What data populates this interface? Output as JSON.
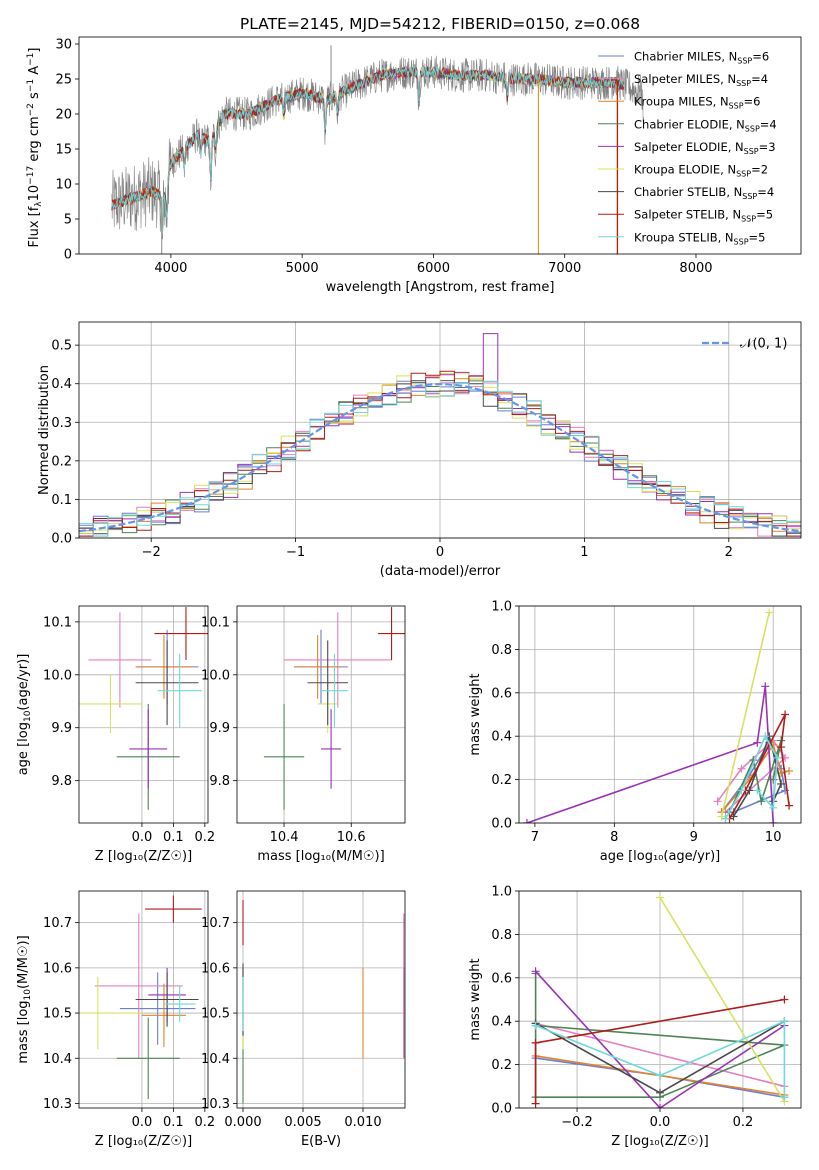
{
  "title": "PLATE=2145, MJD=54212, FIBERID=0150, z=0.068",
  "colors": {
    "chabrier_miles": "#6a7fd8",
    "salpeter_miles": "#e67fbf",
    "kroupa_miles": "#e0832a",
    "chabrier_elodie": "#4f8456",
    "salpeter_elodie": "#9b30b8",
    "kroupa_elodie": "#d9e260",
    "chabrier_stelib": "#4a4a4a",
    "salpeter_stelib": "#b01c1c",
    "kroupa_stelib": "#6fd9dc",
    "normal_curve": "#6495ed"
  },
  "chart_data": [
    {
      "type": "line",
      "id": "spectrum",
      "xlabel": "wavelength [Angstrom, rest frame]",
      "ylabel": "Flux [f_λ10^{-17} erg cm^{-2} s^{-1} A^{-1}]",
      "xlim": [
        3300,
        8800
      ],
      "ylim": [
        0,
        31
      ],
      "xticks": [
        4000,
        5000,
        6000,
        7000,
        8000
      ],
      "yticks": [
        0,
        5,
        10,
        15,
        20,
        25,
        30
      ],
      "legend_position": "top-right",
      "legend": [
        {
          "label": "Chabrier MILES, N",
          "sub": "SSP",
          "suffix": "=6",
          "color_key": "chabrier_miles"
        },
        {
          "label": "Salpeter MILES, N",
          "sub": "SSP",
          "suffix": "=4",
          "color_key": "salpeter_miles"
        },
        {
          "label": "Kroupa MILES, N",
          "sub": "SSP",
          "suffix": "=6",
          "color_key": "kroupa_miles"
        },
        {
          "label": "Chabrier ELODIE, N",
          "sub": "SSP",
          "suffix": "=4",
          "color_key": "chabrier_elodie"
        },
        {
          "label": "Salpeter ELODIE, N",
          "sub": "SSP",
          "suffix": "=3",
          "color_key": "salpeter_elodie"
        },
        {
          "label": "Kroupa ELODIE, N",
          "sub": "SSP",
          "suffix": "=2",
          "color_key": "kroupa_elodie"
        },
        {
          "label": "Chabrier STELIB, N",
          "sub": "SSP",
          "suffix": "=4",
          "color_key": "chabrier_stelib"
        },
        {
          "label": "Salpeter STELIB, N",
          "sub": "SSP",
          "suffix": "=5",
          "color_key": "salpeter_stelib"
        },
        {
          "label": "Kroupa STELIB, N",
          "sub": "SSP",
          "suffix": "=5",
          "color_key": "kroupa_stelib"
        }
      ],
      "continuum": [
        [
          3550,
          7
        ],
        [
          3700,
          8
        ],
        [
          3850,
          9
        ],
        [
          3950,
          8
        ],
        [
          4000,
          13
        ],
        [
          4100,
          15
        ],
        [
          4200,
          17
        ],
        [
          4300,
          16
        ],
        [
          4400,
          20
        ],
        [
          4600,
          20
        ],
        [
          4800,
          22
        ],
        [
          5000,
          23
        ],
        [
          5200,
          22
        ],
        [
          5400,
          24
        ],
        [
          5600,
          25.5
        ],
        [
          5800,
          26
        ],
        [
          6000,
          26
        ],
        [
          6200,
          25.5
        ],
        [
          6400,
          25.5
        ],
        [
          6600,
          25
        ],
        [
          6800,
          25
        ],
        [
          7000,
          24.5
        ],
        [
          7200,
          24.5
        ],
        [
          7400,
          24.5
        ],
        [
          7600,
          23
        ]
      ],
      "observed_end": 7600,
      "features": [
        [
          3934,
          -6
        ],
        [
          3968,
          -5
        ],
        [
          4102,
          -3
        ],
        [
          4227,
          -3
        ],
        [
          4304,
          -6
        ],
        [
          4340,
          -3
        ],
        [
          4861,
          -3
        ],
        [
          5175,
          -5
        ],
        [
          5270,
          -3
        ],
        [
          5890,
          -4
        ],
        [
          6563,
          -3
        ],
        [
          7600,
          -3
        ]
      ],
      "spikes": [
        [
          5220,
          29.8
        ],
        [
          6800,
          0
        ],
        [
          7400,
          0
        ],
        [
          3930,
          0
        ]
      ]
    },
    {
      "type": "histogram",
      "id": "residuals",
      "xlabel": "(data-model)/error",
      "ylabel": "Normed distribution",
      "xlim": [
        -2.5,
        2.5
      ],
      "ylim": [
        0,
        0.56
      ],
      "xticks": [
        -2,
        -1,
        0,
        1,
        2
      ],
      "yticks": [
        0.0,
        0.1,
        0.2,
        0.3,
        0.4,
        0.5
      ],
      "bin_width": 0.1,
      "legend_position": "top-right",
      "normal_label": "𝒩(0, 1)",
      "salpeter_elodie_peak": [
        0.35,
        0.53
      ]
    },
    {
      "type": "errorbar",
      "id": "age-vs-Z",
      "xlabel": "Z [log₁₀(Z/Z☉)]",
      "ylabel": "age  [log₁₀(age/yr)]",
      "xlim": [
        -0.2,
        0.21
      ],
      "ylim": [
        9.72,
        10.13
      ],
      "xticks": [
        0.0,
        0.1,
        0.2
      ],
      "yticks": [
        9.8,
        9.9,
        10.0,
        10.1
      ],
      "points": [
        {
          "key": "chabrier_miles",
          "x": 0.08,
          "xerr": 0.1,
          "y": 10.015,
          "yerr": 0.07
        },
        {
          "key": "salpeter_miles",
          "x": -0.07,
          "xerr": 0.1,
          "y": 10.028,
          "yerr": 0.09
        },
        {
          "key": "kroupa_miles",
          "x": 0.07,
          "xerr": 0.09,
          "y": 10.015,
          "yerr": 0.06
        },
        {
          "key": "chabrier_elodie",
          "x": 0.02,
          "xerr": 0.1,
          "y": 9.845,
          "yerr": 0.1
        },
        {
          "key": "salpeter_elodie",
          "x": 0.02,
          "xerr": 0.06,
          "y": 9.86,
          "yerr": 0.075
        },
        {
          "key": "kroupa_elodie",
          "x": -0.1,
          "xerr": 0.1,
          "y": 9.945,
          "yerr": 0.055
        },
        {
          "key": "chabrier_stelib",
          "x": 0.08,
          "xerr": 0.1,
          "y": 9.985,
          "yerr": 0.08
        },
        {
          "key": "salpeter_stelib",
          "x": 0.14,
          "xerr": 0.1,
          "y": 10.078,
          "yerr": 0.05
        },
        {
          "key": "kroupa_stelib",
          "x": 0.12,
          "xerr": 0.07,
          "y": 9.97,
          "yerr": 0.07
        }
      ]
    },
    {
      "type": "errorbar",
      "id": "age-vs-mass",
      "xlabel": "mass [log₁₀(M/M☉)]",
      "ylabel": "",
      "xlim": [
        10.26,
        10.76
      ],
      "ylim": [
        9.72,
        10.13
      ],
      "xticks": [
        10.4,
        10.6
      ],
      "yticks": [
        9.8,
        9.9,
        10.0,
        10.1
      ],
      "points": [
        {
          "key": "chabrier_miles",
          "x": 10.51,
          "xerr": 0.08,
          "y": 10.015,
          "yerr": 0.07
        },
        {
          "key": "salpeter_miles",
          "x": 10.56,
          "xerr": 0.16,
          "y": 10.028,
          "yerr": 0.09
        },
        {
          "key": "kroupa_miles",
          "x": 10.5,
          "xerr": 0.07,
          "y": 10.015,
          "yerr": 0.06
        },
        {
          "key": "chabrier_elodie",
          "x": 10.4,
          "xerr": 0.06,
          "y": 9.845,
          "yerr": 0.1
        },
        {
          "key": "salpeter_elodie",
          "x": 10.54,
          "xerr": 0.03,
          "y": 9.86,
          "yerr": 0.075
        },
        {
          "key": "kroupa_elodie",
          "x": 10.53,
          "xerr": 0.03,
          "y": 9.945,
          "yerr": 0.055
        },
        {
          "key": "chabrier_stelib",
          "x": 10.53,
          "xerr": 0.06,
          "y": 9.985,
          "yerr": 0.08
        },
        {
          "key": "salpeter_stelib",
          "x": 10.72,
          "xerr": 0.04,
          "y": 10.078,
          "yerr": 0.05
        },
        {
          "key": "kroupa_stelib",
          "x": 10.55,
          "xerr": 0.04,
          "y": 9.97,
          "yerr": 0.07
        }
      ]
    },
    {
      "type": "line",
      "id": "weight-vs-age",
      "xlabel": "age  [log₁₀(age/yr)]",
      "ylabel": "mass weight",
      "xlim": [
        6.8,
        10.35
      ],
      "ylim": [
        0,
        1
      ],
      "xticks": [
        7,
        8,
        9,
        10
      ],
      "yticks": [
        0.0,
        0.2,
        0.4,
        0.6,
        0.8,
        1.0
      ],
      "series": [
        {
          "key": "chabrier_miles",
          "points": [
            [
              9.35,
              0.05
            ],
            [
              9.7,
              0.22
            ],
            [
              9.95,
              0.37
            ],
            [
              10.1,
              0.25
            ],
            [
              10.15,
              0.15
            ],
            [
              9.5,
              0.05
            ]
          ]
        },
        {
          "key": "salpeter_miles",
          "points": [
            [
              9.3,
              0.1
            ],
            [
              9.6,
              0.25
            ],
            [
              10.0,
              0.38
            ],
            [
              10.15,
              0.3
            ],
            [
              9.4,
              0.05
            ]
          ]
        },
        {
          "key": "kroupa_miles",
          "points": [
            [
              9.35,
              0.05
            ],
            [
              9.7,
              0.2
            ],
            [
              10.0,
              0.36
            ],
            [
              10.1,
              0.23
            ],
            [
              10.2,
              0.24
            ]
          ]
        },
        {
          "key": "chabrier_elodie",
          "points": [
            [
              9.45,
              0.05
            ],
            [
              9.75,
              0.29
            ],
            [
              9.85,
              0.1
            ],
            [
              10.1,
              0.38
            ],
            [
              10.0,
              0.2
            ]
          ]
        },
        {
          "key": "salpeter_elodie",
          "points": [
            [
              6.9,
              0.0
            ],
            [
              9.8,
              0.37
            ],
            [
              9.9,
              0.63
            ],
            [
              10.0,
              0.0
            ]
          ]
        },
        {
          "key": "kroupa_elodie",
          "points": [
            [
              9.35,
              0.03
            ],
            [
              9.95,
              0.97
            ]
          ]
        },
        {
          "key": "chabrier_stelib",
          "points": [
            [
              9.5,
              0.03
            ],
            [
              9.7,
              0.15
            ],
            [
              9.95,
              0.4
            ],
            [
              10.1,
              0.18
            ],
            [
              10.0,
              0.1
            ]
          ]
        },
        {
          "key": "salpeter_stelib",
          "points": [
            [
              9.45,
              0.02
            ],
            [
              9.65,
              0.15
            ],
            [
              10.15,
              0.5
            ],
            [
              10.1,
              0.35
            ],
            [
              10.2,
              0.08
            ]
          ]
        },
        {
          "key": "kroupa_stelib",
          "points": [
            [
              9.4,
              0.02
            ],
            [
              9.6,
              0.15
            ],
            [
              9.9,
              0.4
            ],
            [
              10.05,
              0.3
            ],
            [
              10.0,
              0.07
            ],
            [
              9.8,
              0.15
            ]
          ]
        }
      ]
    },
    {
      "type": "errorbar",
      "id": "mass-vs-Z",
      "xlabel": "Z [log₁₀(Z/Z☉)]",
      "ylabel": "mass [log₁₀(M/M☉)]",
      "xlim": [
        -0.2,
        0.21
      ],
      "ylim": [
        10.29,
        10.77
      ],
      "xticks": [
        0.0,
        0.1,
        0.2
      ],
      "yticks": [
        10.3,
        10.4,
        10.5,
        10.6,
        10.7
      ],
      "points": [
        {
          "key": "chabrier_miles",
          "x": 0.05,
          "xerr": 0.12,
          "y": 10.51,
          "yerr": 0.08
        },
        {
          "key": "salpeter_miles",
          "x": -0.01,
          "xerr": 0.14,
          "y": 10.56,
          "yerr": 0.16
        },
        {
          "key": "kroupa_miles",
          "x": 0.07,
          "xerr": 0.07,
          "y": 10.495,
          "yerr": 0.07
        },
        {
          "key": "chabrier_elodie",
          "x": 0.02,
          "xerr": 0.1,
          "y": 10.4,
          "yerr": 0.09
        },
        {
          "key": "salpeter_elodie",
          "x": 0.08,
          "xerr": 0.06,
          "y": 10.54,
          "yerr": 0.06
        },
        {
          "key": "kroupa_elodie",
          "x": -0.14,
          "xerr": 0.14,
          "y": 10.5,
          "yerr": 0.08
        },
        {
          "key": "chabrier_stelib",
          "x": 0.08,
          "xerr": 0.1,
          "y": 10.53,
          "yerr": 0.06
        },
        {
          "key": "salpeter_stelib",
          "x": 0.1,
          "xerr": 0.09,
          "y": 10.73,
          "yerr": 0.03
        },
        {
          "key": "kroupa_stelib",
          "x": 0.12,
          "xerr": 0.05,
          "y": 10.52,
          "yerr": 0.04
        }
      ]
    },
    {
      "type": "errorbar",
      "id": "mass-vs-ebv",
      "xlabel": "E(B-V)",
      "ylabel": "",
      "xlim": [
        -0.0005,
        0.0135
      ],
      "ylim": [
        10.29,
        10.77
      ],
      "xticks": [
        0.0,
        0.005,
        0.01
      ],
      "xticklabels": [
        "0.000",
        "0.005",
        "0.010"
      ],
      "yticks": [
        10.3,
        10.4,
        10.5,
        10.6,
        10.7
      ],
      "points": [
        {
          "key": "chabrier_miles",
          "x": 0.0134,
          "xerr": 0,
          "y": 10.5,
          "yerr": 0.1
        },
        {
          "key": "salpeter_miles",
          "x": 0.0134,
          "xerr": 0,
          "y": 10.56,
          "yerr": 0.16
        },
        {
          "key": "kroupa_miles",
          "x": 0.01,
          "xerr": 0,
          "y": 10.5,
          "yerr": 0.1
        },
        {
          "key": "chabrier_elodie",
          "x": 0.0,
          "xerr": 0,
          "y": 10.4,
          "yerr": 0.1
        },
        {
          "key": "salpeter_elodie",
          "x": 0.0,
          "xerr": 0,
          "y": 10.54,
          "yerr": 0.06
        },
        {
          "key": "kroupa_elodie",
          "x": 0.0,
          "xerr": 0,
          "y": 10.5,
          "yerr": 0.08
        },
        {
          "key": "chabrier_stelib",
          "x": 0.0,
          "xerr": 0,
          "y": 10.53,
          "yerr": 0.08
        },
        {
          "key": "salpeter_stelib",
          "x": 0.0,
          "xerr": 0,
          "y": 10.7,
          "yerr": 0.05
        },
        {
          "key": "kroupa_stelib",
          "x": 0.0,
          "xerr": 0,
          "y": 10.52,
          "yerr": 0.06
        }
      ]
    },
    {
      "type": "line",
      "id": "weight-vs-Z",
      "xlabel": "Z [log₁₀(Z/Z☉)]",
      "ylabel": "mass weight",
      "xlim": [
        -0.34,
        0.34
      ],
      "ylim": [
        0,
        1
      ],
      "xticks": [
        -0.2,
        0.0,
        0.2
      ],
      "yticks": [
        0.0,
        0.2,
        0.4,
        0.6,
        0.8,
        1.0
      ],
      "series": [
        {
          "key": "chabrier_miles",
          "points": [
            [
              -0.3,
              0.23
            ],
            [
              0.0,
              0.15
            ],
            [
              0.3,
              0.05
            ]
          ]
        },
        {
          "key": "salpeter_miles",
          "points": [
            [
              -0.3,
              0.39
            ],
            [
              0.3,
              0.1
            ]
          ]
        },
        {
          "key": "kroupa_miles",
          "points": [
            [
              -0.3,
              0.24
            ],
            [
              0.0,
              0.15
            ],
            [
              0.3,
              0.06
            ]
          ]
        },
        {
          "key": "chabrier_elodie",
          "points": [
            [
              -0.3,
              0.62
            ],
            [
              -0.3,
              0.05
            ],
            [
              0.0,
              0.05
            ],
            [
              0.3,
              0.29
            ],
            [
              -0.3,
              0.38
            ]
          ]
        },
        {
          "key": "salpeter_elodie",
          "points": [
            [
              -0.3,
              0.63
            ],
            [
              0.0,
              0.0
            ],
            [
              0.3,
              0.38
            ]
          ]
        },
        {
          "key": "kroupa_elodie",
          "points": [
            [
              0.0,
              0.97
            ],
            [
              0.3,
              0.03
            ]
          ]
        },
        {
          "key": "chabrier_stelib",
          "points": [
            [
              -0.3,
              0.39
            ],
            [
              0.0,
              0.07
            ],
            [
              0.3,
              0.4
            ]
          ]
        },
        {
          "key": "salpeter_stelib",
          "points": [
            [
              -0.3,
              0.02
            ],
            [
              -0.3,
              0.3
            ],
            [
              0.3,
              0.5
            ]
          ]
        },
        {
          "key": "kroupa_stelib",
          "points": [
            [
              -0.3,
              0.38
            ],
            [
              0.0,
              0.15
            ],
            [
              0.3,
              0.4
            ],
            [
              0.3,
              0.05
            ]
          ]
        }
      ]
    }
  ]
}
